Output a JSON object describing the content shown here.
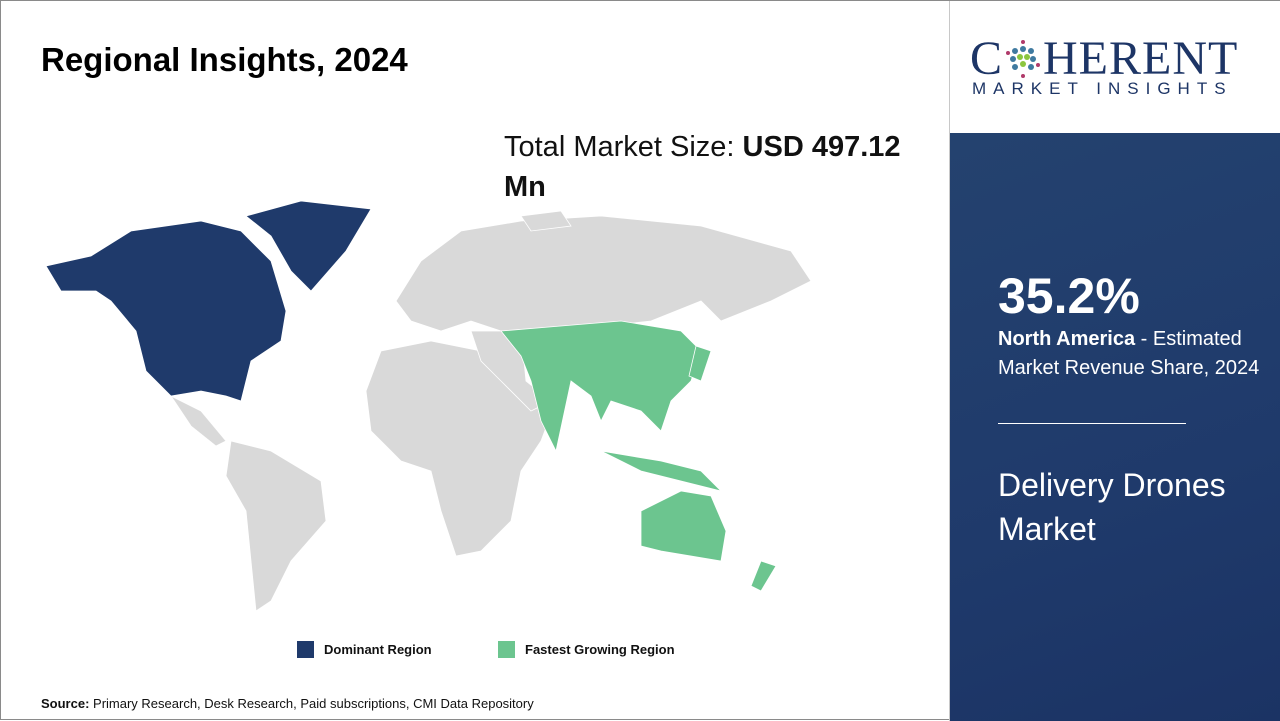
{
  "title": "Regional Insights, 2024",
  "total_market": {
    "label": "Total Market Size: ",
    "value": "USD 497.12 Mn"
  },
  "legend": [
    {
      "label": "Dominant Region",
      "color": "#1f3a6b"
    },
    {
      "label": "Fastest Growing Region",
      "color": "#6cc58f"
    }
  ],
  "source": {
    "label": "Source:",
    "text": " Primary Research, Desk Research, Paid subscriptions, CMI Data Repository"
  },
  "logo": {
    "line1": "COHERENT",
    "line2": "MARKET INSIGHTS"
  },
  "highlight": {
    "percent": "35.2%",
    "region": "North America",
    "description": " - Estimated Market Revenue Share, 2024"
  },
  "market_name": "Delivery Drones Market",
  "colors": {
    "dominant": "#1f3a6b",
    "fastest": "#6cc58f",
    "other": "#d9d9d9"
  }
}
